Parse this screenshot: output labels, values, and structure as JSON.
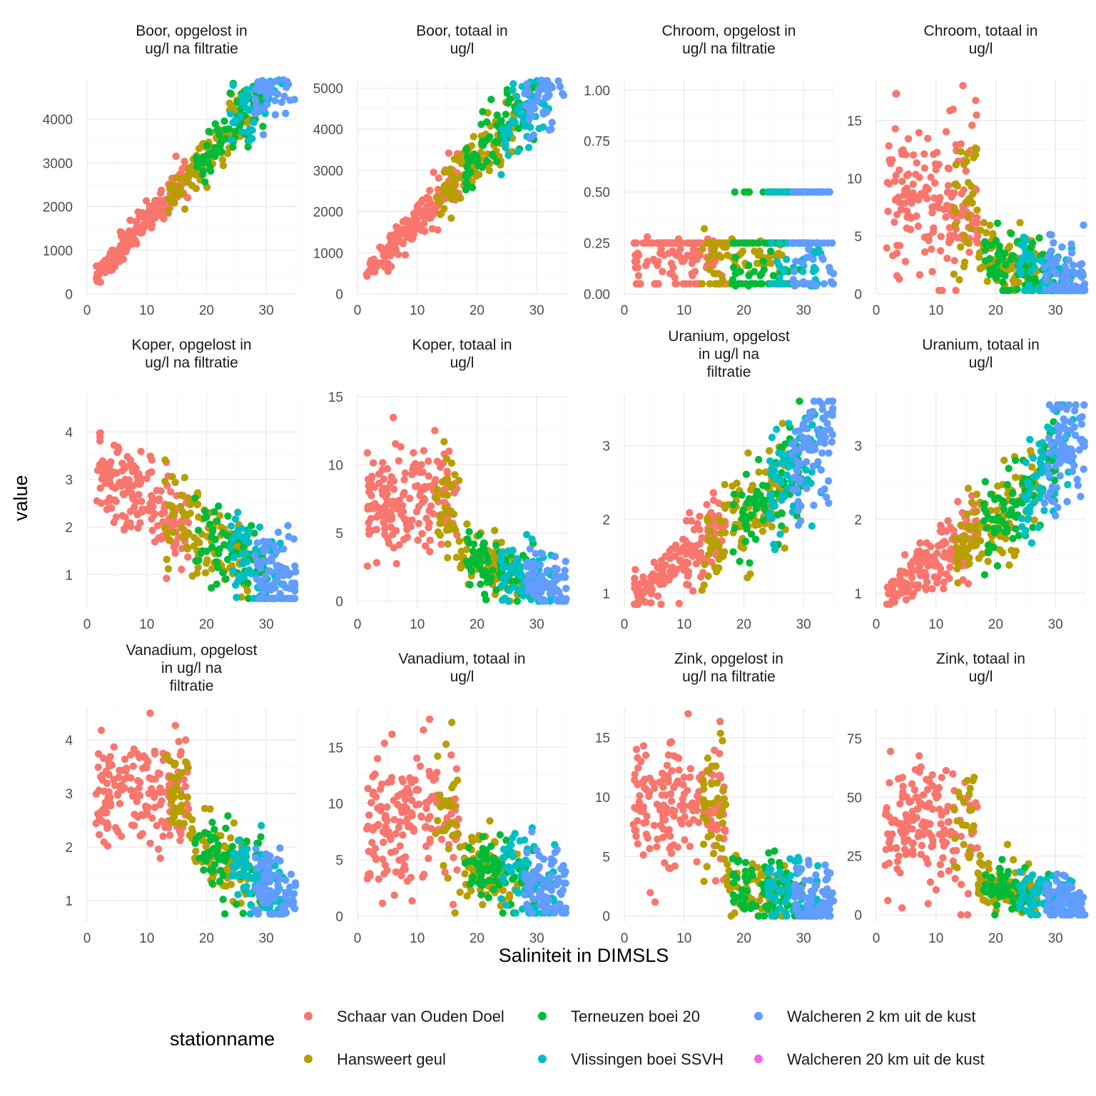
{
  "chart_data": [
    {
      "type": "scatter",
      "title": "Boor, opgelost in\nug/l na filtratie",
      "xlim": [
        0,
        35
      ],
      "ylim": [
        0,
        4900
      ],
      "xticks": [
        0,
        10,
        20,
        30
      ],
      "yticks": [
        0,
        1000,
        2000,
        3000,
        4000
      ],
      "ytick_labels": [
        "0",
        "1000",
        "2000",
        "3000",
        "4000"
      ],
      "pattern": "boor_opgelost",
      "series": []
    },
    {
      "type": "scatter",
      "title": "Boor, totaal in\nug/l",
      "xlim": [
        0,
        35
      ],
      "ylim": [
        0,
        5200
      ],
      "xticks": [
        0,
        10,
        20,
        30
      ],
      "yticks": [
        0,
        1000,
        2000,
        3000,
        4000,
        5000
      ],
      "ytick_labels": [
        "0",
        "1000",
        "2000",
        "3000",
        "4000",
        "5000"
      ],
      "pattern": "boor_totaal",
      "series": []
    },
    {
      "type": "scatter",
      "title": "Chroom, opgelost in\nug/l na filtratie",
      "xlim": [
        0,
        35
      ],
      "ylim": [
        0,
        1.05
      ],
      "xticks": [
        0,
        10,
        20,
        30
      ],
      "yticks": [
        0,
        0.25,
        0.5,
        0.75,
        1.0
      ],
      "ytick_labels": [
        "0.00",
        "0.25",
        "0.50",
        "0.75",
        "1.00"
      ],
      "pattern": "chroom_opgelost",
      "series": []
    },
    {
      "type": "scatter",
      "title": "Chroom, totaal in\nug/l",
      "xlim": [
        0,
        35
      ],
      "ylim": [
        0,
        18.5
      ],
      "xticks": [
        0,
        10,
        20,
        30
      ],
      "yticks": [
        0,
        5,
        10,
        15
      ],
      "ytick_labels": [
        "0",
        "5",
        "10",
        "15"
      ],
      "pattern": "chroom_totaal",
      "series": []
    },
    {
      "type": "scatter",
      "title": "Koper, opgelost in\nug/l na filtratie",
      "xlim": [
        0,
        35
      ],
      "ylim": [
        0.3,
        4.8
      ],
      "xticks": [
        0,
        10,
        20,
        30
      ],
      "yticks": [
        1,
        2,
        3,
        4
      ],
      "ytick_labels": [
        "1",
        "2",
        "3",
        "4"
      ],
      "pattern": "koper_opgelost",
      "series": []
    },
    {
      "type": "scatter",
      "title": "Koper, totaal in\nug/l",
      "xlim": [
        0,
        35
      ],
      "ylim": [
        -0.5,
        15.2
      ],
      "xticks": [
        0,
        10,
        20,
        30
      ],
      "yticks": [
        0,
        5,
        10,
        15
      ],
      "ytick_labels": [
        "0",
        "5",
        "10",
        "15"
      ],
      "pattern": "koper_totaal",
      "series": []
    },
    {
      "type": "scatter",
      "title": "Uranium, opgelost\nin ug/l na\nfiltratie",
      "xlim": [
        0,
        35
      ],
      "ylim": [
        0.8,
        3.7
      ],
      "xticks": [
        0,
        10,
        20,
        30
      ],
      "yticks": [
        1,
        2,
        3
      ],
      "ytick_labels": [
        "1",
        "2",
        "3"
      ],
      "pattern": "uranium_opgelost",
      "series": []
    },
    {
      "type": "scatter",
      "title": "Uranium, totaal in\nug/l",
      "xlim": [
        0,
        35
      ],
      "ylim": [
        0.8,
        3.7
      ],
      "xticks": [
        0,
        10,
        20,
        30
      ],
      "yticks": [
        1,
        2,
        3
      ],
      "ytick_labels": [
        "1",
        "2",
        "3"
      ],
      "pattern": "uranium_totaal",
      "series": []
    },
    {
      "type": "scatter",
      "title": "Vanadium, opgelost\nin ug/l na\nfiltratie",
      "xlim": [
        0,
        35
      ],
      "ylim": [
        0.6,
        4.6
      ],
      "xticks": [
        0,
        10,
        20,
        30
      ],
      "yticks": [
        1,
        2,
        3,
        4
      ],
      "ytick_labels": [
        "1",
        "2",
        "3",
        "4"
      ],
      "pattern": "vanadium_opgelost",
      "series": []
    },
    {
      "type": "scatter",
      "title": "Vanadium, totaal in\nug/l",
      "xlim": [
        0,
        35
      ],
      "ylim": [
        -0.5,
        18.5
      ],
      "xticks": [
        0,
        10,
        20,
        30
      ],
      "yticks": [
        0,
        5,
        10,
        15
      ],
      "ytick_labels": [
        "0",
        "5",
        "10",
        "15"
      ],
      "pattern": "vanadium_totaal",
      "series": []
    },
    {
      "type": "scatter",
      "title": "Zink, opgelost in\nug/l na filtratie",
      "xlim": [
        0,
        35
      ],
      "ylim": [
        -0.5,
        17.5
      ],
      "xticks": [
        0,
        10,
        20,
        30
      ],
      "yticks": [
        0,
        5,
        10,
        15
      ],
      "ytick_labels": [
        "0",
        "5",
        "10",
        "15"
      ],
      "pattern": "zink_opgelost",
      "series": []
    },
    {
      "type": "scatter",
      "title": "Zink, totaal in\nug/l",
      "xlim": [
        0,
        35
      ],
      "ylim": [
        -3,
        88
      ],
      "xticks": [
        0,
        10,
        20,
        30
      ],
      "yticks": [
        0,
        25,
        50,
        75
      ],
      "ytick_labels": [
        "0",
        "25",
        "50",
        "75"
      ],
      "pattern": "zink_totaal",
      "series": []
    }
  ],
  "xlabel": "Saliniteit in DIMSLS",
  "ylabel": "value",
  "legend": {
    "title": "stationname",
    "items": [
      {
        "name": "Schaar van Ouden Doel",
        "color": "#F8766D"
      },
      {
        "name": "Hansweert geul",
        "color": "#B79F00"
      },
      {
        "name": "Terneuzen boei 20",
        "color": "#00BA38"
      },
      {
        "name": "Vlissingen boei SSVH",
        "color": "#00BFC4"
      },
      {
        "name": "Walcheren 2 km uit de kust",
        "color": "#619CFF"
      },
      {
        "name": "Walcheren 20 km uit de kust",
        "color": "#F564E3"
      }
    ]
  },
  "station_salinity_ranges": [
    {
      "station": "Schaar van Ouden Doel",
      "salinity": [
        1.5,
        17
      ]
    },
    {
      "station": "Hansweert geul",
      "salinity": [
        13,
        27
      ]
    },
    {
      "station": "Terneuzen boei 20",
      "salinity": [
        18,
        30
      ]
    },
    {
      "station": "Vlissingen boei SSVH",
      "salinity": [
        24,
        33
      ]
    },
    {
      "station": "Walcheren 2 km uit de kust",
      "salinity": [
        28,
        35
      ]
    }
  ]
}
